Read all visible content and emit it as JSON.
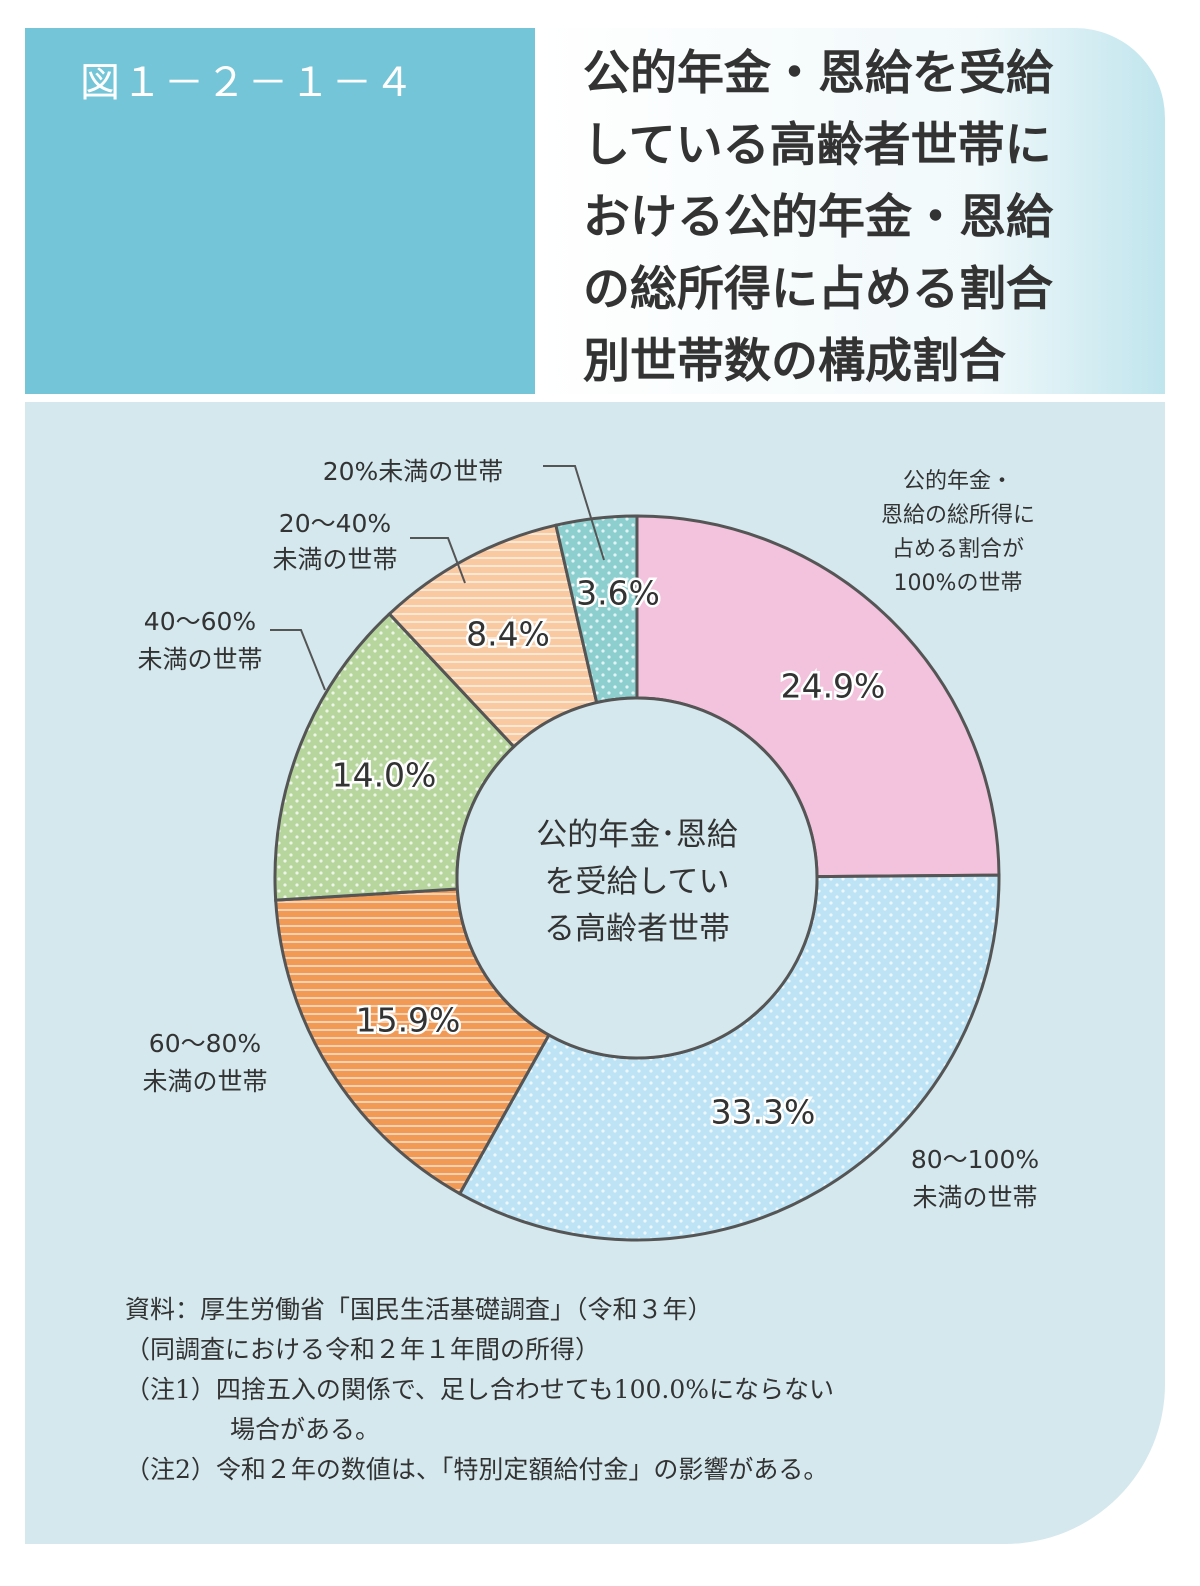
{
  "figure_number": "図１－２－１－４",
  "title_lines": [
    "公的年金・恩給を受給",
    "している高齢者世帯に",
    "おける公的年金・恩給",
    "の総所得に占める割合",
    "別世帯数の構成割合"
  ],
  "chart_data": {
    "type": "pie",
    "center_label_lines": [
      "公的年金･恩給",
      "を受給してい",
      "る高齢者世帯"
    ],
    "slices": [
      {
        "label_lines": [
          "公的年金・",
          "恩給の総所得に",
          "占める割合が",
          "100%の世帯"
        ],
        "value": 24.9,
        "value_label": "24.9%",
        "color": "#f3c2dc",
        "pattern": "none"
      },
      {
        "label_lines": [
          "80～100%",
          "未満の世帯"
        ],
        "value": 33.3,
        "value_label": "33.3%",
        "color": "#bde3f4",
        "pattern": "dots"
      },
      {
        "label_lines": [
          "60～80%",
          "未満の世帯"
        ],
        "value": 15.9,
        "value_label": "15.9%",
        "color": "#f09a55",
        "pattern": "stripes"
      },
      {
        "label_lines": [
          "40～60%",
          "未満の世帯"
        ],
        "value": 14.0,
        "value_label": "14.0%",
        "color": "#b7d69e",
        "pattern": "dots"
      },
      {
        "label_lines": [
          "20～40%",
          "未満の世帯"
        ],
        "value": 8.4,
        "value_label": "8.4%",
        "color": "#f9c9a2",
        "pattern": "stripes"
      },
      {
        "label_lines": [
          "20%未満の世帯"
        ],
        "value": 3.6,
        "value_label": "3.6%",
        "color": "#8dcfcf",
        "pattern": "dots"
      }
    ]
  },
  "notes": [
    "資料：厚生労働省「国民生活基礎調査」（令和３年）",
    "（同調査における令和２年１年間の所得）",
    "（注1）四捨五入の関係で、足し合わせても100.0%にならない",
    "場合がある。",
    "（注2）令和２年の数値は、「特別定額給付金」の影響がある。"
  ]
}
